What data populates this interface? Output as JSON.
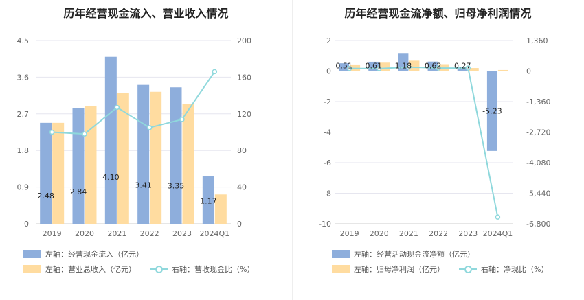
{
  "colors": {
    "bar1": "#8eaedc",
    "bar2": "#ffdca0",
    "line": "#8fd8dc",
    "grid": "#e6e6ef",
    "axis": "#cccccc"
  },
  "chart_data": [
    {
      "type": "bar",
      "title": "历年经营现金流入、营业收入情况",
      "categories": [
        "2019",
        "2020",
        "2021",
        "2022",
        "2023",
        "2024Q1"
      ],
      "y_left": {
        "min": 0,
        "max": 4.5,
        "ticks": [
          "0",
          "0.9",
          "1.8",
          "2.7",
          "3.6",
          "4.5"
        ]
      },
      "y_right": {
        "min": 0,
        "max": 200,
        "ticks": [
          "0",
          "40",
          "80",
          "120",
          "160",
          "200"
        ]
      },
      "series": [
        {
          "name": "左轴：经营现金流入（亿元）",
          "axis": "left",
          "kind": "bar",
          "values": [
            2.48,
            2.84,
            4.1,
            3.41,
            3.35,
            1.17
          ],
          "labels": [
            "2.48",
            "2.84",
            "4.10",
            "3.41",
            "3.35",
            "1.17"
          ]
        },
        {
          "name": "左轴：营业总收入（亿元）",
          "axis": "left",
          "kind": "bar",
          "values": [
            2.48,
            2.89,
            3.21,
            3.24,
            2.94,
            0.72
          ]
        },
        {
          "name": "右轴：营收现金比（%）",
          "axis": "right",
          "kind": "line",
          "values": [
            100,
            98,
            127,
            105,
            114,
            166
          ]
        }
      ],
      "legend": [
        "左轴：经营现金流入（亿元）",
        "左轴：营业总收入（亿元）",
        "右轴：营收现金比（%）"
      ]
    },
    {
      "type": "bar",
      "title": "历年经营现金流净额、归母净利润情况",
      "categories": [
        "2019",
        "2020",
        "2021",
        "2022",
        "2023",
        "2024Q1"
      ],
      "y_left": {
        "min": -10,
        "max": 2,
        "ticks": [
          "-10",
          "-8",
          "-6",
          "-4",
          "-2",
          "0",
          "2"
        ]
      },
      "y_right": {
        "min": -6800,
        "max": 1360,
        "ticks": [
          "-6,800",
          "-5,440",
          "-4,080",
          "-2,720",
          "-1,360",
          "0",
          "1,360"
        ]
      },
      "series": [
        {
          "name": "左轴：经营活动现金流净额（亿元）",
          "axis": "left",
          "kind": "bar",
          "values": [
            0.51,
            0.61,
            1.18,
            0.62,
            0.27,
            -5.23
          ],
          "labels": [
            "0.51",
            "0.61",
            "1.18",
            "0.62",
            "0.27",
            "-5.23"
          ]
        },
        {
          "name": "左轴：归母净利润（亿元）",
          "axis": "left",
          "kind": "bar",
          "values": [
            0.43,
            0.55,
            0.68,
            0.45,
            0.2,
            0.07
          ]
        },
        {
          "name": "右轴：净现比（%）",
          "axis": "right",
          "kind": "line",
          "values": [
            118,
            111,
            174,
            138,
            135,
            -6500
          ]
        }
      ],
      "legend": [
        "左轴：经营活动现金流净额（亿元）",
        "左轴：归母净利润（亿元）",
        "右轴：净现比（%）"
      ]
    }
  ]
}
